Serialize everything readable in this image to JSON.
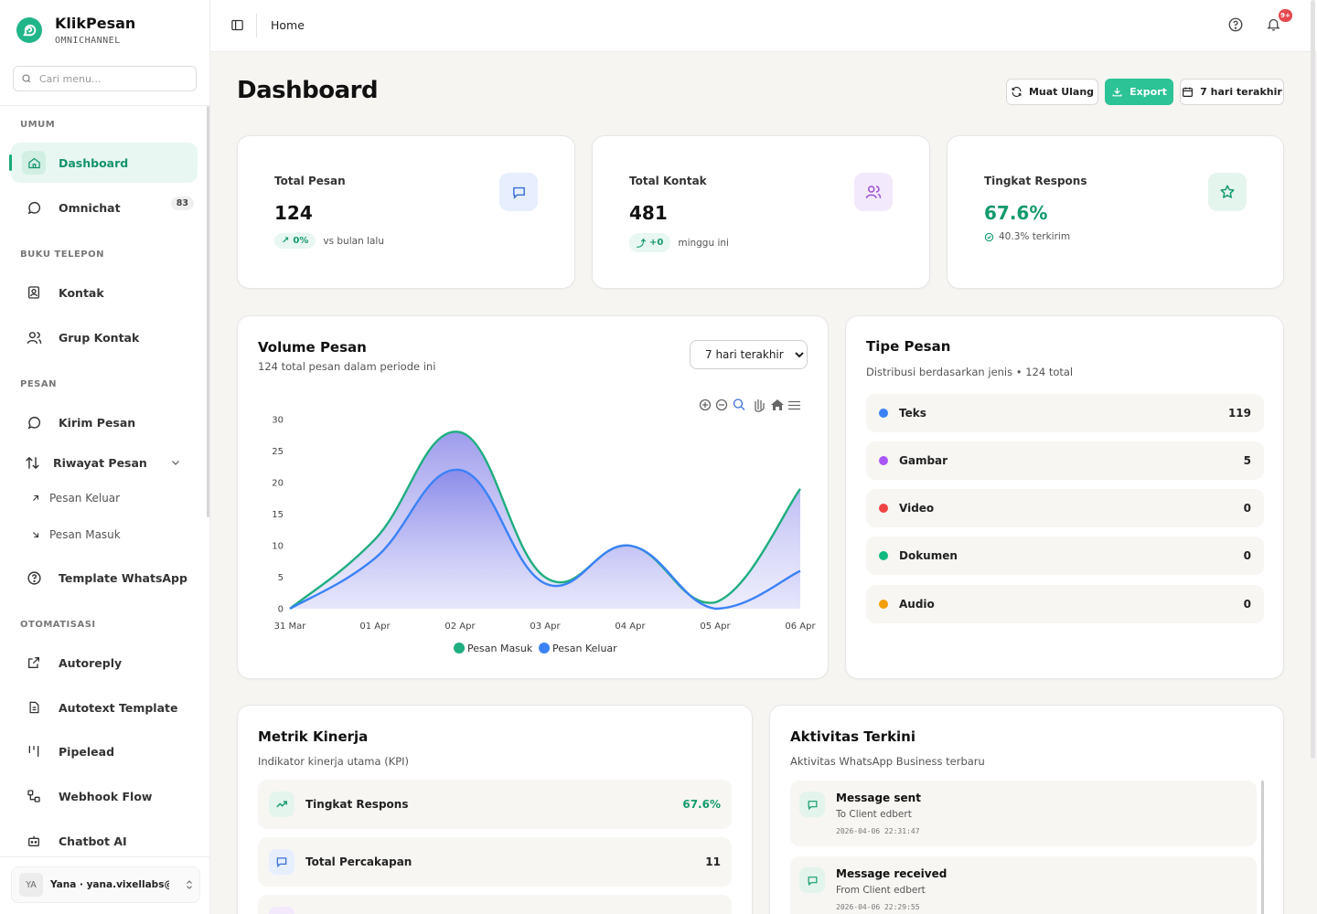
{
  "brand": {
    "name": "KlikPesan",
    "subtitle": "OMNICHANNEL"
  },
  "search": {
    "placeholder": "Cari menu..."
  },
  "sections": {
    "umum": "UMUM",
    "buku_telepon": "BUKU TELEPON",
    "pesan": "PESAN",
    "otomatisasi": "OTOMATISASI"
  },
  "nav": {
    "dashboard": "Dashboard",
    "omnichat": "Omnichat",
    "omnichat_badge": "83",
    "kontak": "Kontak",
    "grup_kontak": "Grup Kontak",
    "kirim_pesan": "Kirim Pesan",
    "riwayat_pesan": "Riwayat Pesan",
    "pesan_keluar": "Pesan Keluar",
    "pesan_masuk": "Pesan Masuk",
    "template_whatsapp": "Template WhatsApp",
    "autoreply": "Autoreply",
    "autotext_template": "Autotext Template",
    "pipelead": "Pipelead",
    "webhook_flow": "Webhook Flow",
    "chatbot_ai": "Chatbot AI"
  },
  "user": {
    "initials": "YA",
    "label": "Yana · yana.vixellabs@g..."
  },
  "topbar": {
    "breadcrumb": "Home",
    "notif_badge": "9+"
  },
  "page": {
    "title": "Dashboard"
  },
  "actions": {
    "reload": "Muat Ulang",
    "export": "Export",
    "range": "7 hari terakhir"
  },
  "stats": [
    {
      "label": "Total Pesan",
      "value": "124",
      "pill": "0%",
      "foot": "vs bulan lalu"
    },
    {
      "label": "Total Kontak",
      "value": "481",
      "pill": "+0",
      "foot": "minggu ini"
    },
    {
      "label": "Tingkat Respons",
      "value": "67.6%",
      "foot": "40.3% terkirim"
    }
  ],
  "volume": {
    "title": "Volume Pesan",
    "subtitle": "124 total pesan dalam periode ini",
    "select_value": "7 hari terakhir"
  },
  "chart_data": {
    "type": "area",
    "categories": [
      "31 Mar",
      "01 Apr",
      "02 Apr",
      "03 Apr",
      "04 Apr",
      "05 Apr",
      "06 Apr"
    ],
    "ylim": [
      0,
      30
    ],
    "yticks": [
      0,
      5,
      10,
      15,
      20,
      25,
      30
    ],
    "legend": "bottom",
    "series": [
      {
        "name": "Pesan Masuk",
        "color": "#1fae7f",
        "values": [
          0,
          11,
          28,
          5,
          10,
          1,
          19
        ]
      },
      {
        "name": "Pesan Keluar",
        "color": "#3b82f6",
        "values": [
          0,
          8,
          22,
          4,
          10,
          0,
          6
        ]
      }
    ]
  },
  "tipe": {
    "title": "Tipe Pesan",
    "subtitle": "Distribusi berdasarkan jenis • 124 total",
    "items": [
      {
        "name": "Teks",
        "count": "119",
        "color": "#3b82f6"
      },
      {
        "name": "Gambar",
        "count": "5",
        "color": "#a855f7"
      },
      {
        "name": "Video",
        "count": "0",
        "color": "#ef4444"
      },
      {
        "name": "Dokumen",
        "count": "0",
        "color": "#10b981"
      },
      {
        "name": "Audio",
        "count": "0",
        "color": "#f59e0b"
      }
    ]
  },
  "metrik": {
    "title": "Metrik Kinerja",
    "subtitle": "Indikator kinerja utama (KPI)",
    "items": [
      {
        "name": "Tingkat Respons",
        "value": "67.6%"
      },
      {
        "name": "Total Percakapan",
        "value": "11"
      }
    ]
  },
  "aktivitas": {
    "title": "Aktivitas Terkini",
    "subtitle": "Aktivitas WhatsApp Business terbaru",
    "items": [
      {
        "title": "Message sent",
        "desc": "To Client edbert",
        "time": "2026-04-06 22:31:47"
      },
      {
        "title": "Message received",
        "desc": "From Client edbert",
        "time": "2026-04-06 22:29:55"
      }
    ]
  }
}
